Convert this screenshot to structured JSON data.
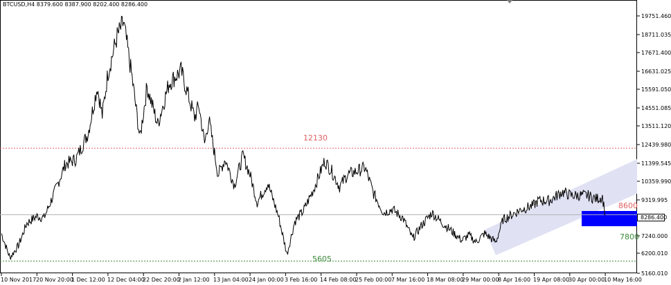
{
  "symbol_info": "BTCUSD,H4  8379.600 8387.900 8202.400 8286.400",
  "current_price": "8286.400",
  "level_labels": {
    "resistance": "12130",
    "support": "5605",
    "upper_target": "8600",
    "lower_target": "7800"
  },
  "colors": {
    "resistance_line": "#e06060",
    "support_line": "#3a8a3a",
    "upper_target_text": "#e06060",
    "lower_target_text": "#3a8a3a",
    "channel_fill": "#e0e2f4",
    "zone_fill": "#0000ff",
    "price_series": "#000000",
    "current_price_line": "#b0b0b0"
  },
  "price_axis_ticks": [
    "19751.460",
    "18711.035",
    "17671.400",
    "16631.025",
    "15591.050",
    "14551.085",
    "13511.120",
    "12439.980",
    "11399.545",
    "10359.990",
    "9319.995",
    "8286.400",
    "7240.000",
    "6200.010",
    "5160.010"
  ],
  "time_axis_ticks": [
    "10 Nov 2017",
    "20 Nov 20:00",
    "1 Dec 12:00",
    "12 Dec 04:00",
    "22 Dec 20:00",
    "2 Jan 12:00",
    "13 Jan 04:00",
    "24 Jan 00:00",
    "3 Feb 16:00",
    "14 Feb 08:00",
    "25 Feb 00:00",
    "7 Mar 16:00",
    "18 Mar 08:00",
    "29 Mar 00:00",
    "8 Apr 16:00",
    "19 Apr 08:00",
    "30 Apr 00:00",
    "10 May 16:00"
  ],
  "chart_data": {
    "type": "line",
    "symbol": "BTCUSD",
    "timeframe": "H4",
    "ylim": [
      4900,
      20700
    ],
    "x_categories": [
      "10 Nov 2017",
      "20 Nov 20:00",
      "1 Dec 12:00",
      "12 Dec 04:00",
      "22 Dec 20:00",
      "2 Jan 12:00",
      "13 Jan 04:00",
      "24 Jan 00:00",
      "3 Feb 16:00",
      "14 Feb 08:00",
      "25 Feb 00:00",
      "7 Mar 16:00",
      "18 Mar 08:00",
      "29 Mar 00:00",
      "8 Apr 16:00",
      "19 Apr 08:00",
      "30 Apr 00:00",
      "10 May 16:00"
    ],
    "series": [
      {
        "values": [
          [
            0,
            7200
          ],
          [
            1.2,
            5800
          ],
          [
            2.4,
            6500
          ],
          [
            3.6,
            7800
          ],
          [
            5,
            8200
          ],
          [
            6,
            8100
          ],
          [
            7.5,
            9600
          ],
          [
            9,
            11200
          ],
          [
            10.5,
            11500
          ],
          [
            12.2,
            13000
          ],
          [
            13.5,
            15700
          ],
          [
            14.2,
            14000
          ],
          [
            15,
            16500
          ],
          [
            16.3,
            18600
          ],
          [
            17.2,
            19400
          ],
          [
            18.4,
            16200
          ],
          [
            19.5,
            12700
          ],
          [
            20.5,
            15700
          ],
          [
            22,
            13500
          ],
          [
            23.6,
            15900
          ],
          [
            25.3,
            16600
          ],
          [
            27.2,
            13900
          ],
          [
            27.8,
            14600
          ],
          [
            28.6,
            12400
          ],
          [
            29.2,
            13800
          ],
          [
            30.5,
            10600
          ],
          [
            31.5,
            11500
          ],
          [
            32.8,
            10000
          ],
          [
            34,
            11700
          ],
          [
            35,
            10600
          ],
          [
            36,
            9000
          ],
          [
            37.5,
            10100
          ],
          [
            39,
            8200
          ],
          [
            40.2,
            6000
          ],
          [
            41.3,
            7900
          ],
          [
            42.5,
            8500
          ],
          [
            44,
            9800
          ],
          [
            45.5,
            11400
          ],
          [
            46.5,
            10800
          ],
          [
            47.6,
            9900
          ],
          [
            48.7,
            10600
          ],
          [
            50,
            10800
          ],
          [
            51.2,
            11000
          ],
          [
            52.4,
            9500
          ],
          [
            53.8,
            8400
          ],
          [
            55,
            8600
          ],
          [
            56.5,
            8100
          ],
          [
            57.9,
            6900
          ],
          [
            59.2,
            7700
          ],
          [
            60.6,
            8400
          ],
          [
            61.8,
            7900
          ],
          [
            63.2,
            7400
          ],
          [
            64.8,
            6800
          ],
          [
            65.8,
            7100
          ],
          [
            66.8,
            6700
          ],
          [
            68,
            7200
          ],
          [
            69.6,
            6700
          ],
          [
            70.6,
            8000
          ],
          [
            71.5,
            8200
          ],
          [
            73.2,
            8600
          ],
          [
            74.8,
            8800
          ],
          [
            75.6,
            9100
          ],
          [
            77.2,
            9100
          ],
          [
            78.9,
            9600
          ],
          [
            80.2,
            9400
          ],
          [
            81.4,
            9400
          ],
          [
            82.5,
            9400
          ],
          [
            83.7,
            9200
          ],
          [
            84.6,
            9300
          ],
          [
            85,
            8300
          ]
        ]
      }
    ],
    "levels": [
      {
        "label": "12130",
        "value": 12130
      },
      {
        "label": "5605",
        "value": 5605
      },
      {
        "label": "8600",
        "value": 8600
      },
      {
        "label": "7800",
        "value": 7800
      }
    ],
    "current_price": 8286.4,
    "grid": false,
    "legend": "none"
  }
}
